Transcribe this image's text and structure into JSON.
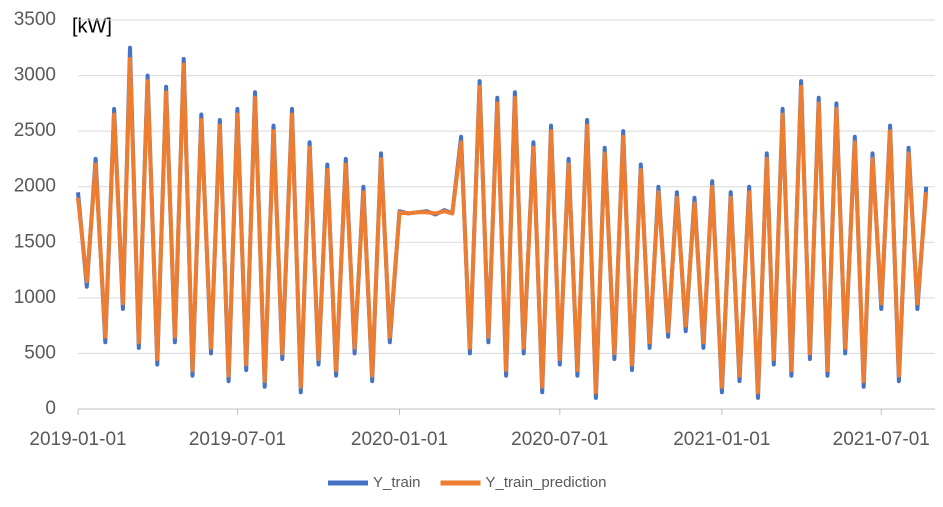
{
  "chart_data": {
    "type": "line",
    "unit_label": "[kW]",
    "x": [
      "2019-01-01",
      "2019-01-11",
      "2019-01-21",
      "2019-02-01",
      "2019-02-11",
      "2019-02-21",
      "2019-03-01",
      "2019-03-11",
      "2019-03-21",
      "2019-04-01",
      "2019-04-11",
      "2019-04-21",
      "2019-05-01",
      "2019-05-11",
      "2019-05-21",
      "2019-06-01",
      "2019-06-11",
      "2019-06-21",
      "2019-07-01",
      "2019-07-11",
      "2019-07-21",
      "2019-08-01",
      "2019-08-11",
      "2019-08-21",
      "2019-09-01",
      "2019-09-11",
      "2019-09-21",
      "2019-10-01",
      "2019-10-11",
      "2019-10-21",
      "2019-11-01",
      "2019-11-11",
      "2019-11-21",
      "2019-12-01",
      "2019-12-11",
      "2019-12-21",
      "2020-01-01",
      "2020-01-11",
      "2020-01-21",
      "2020-02-01",
      "2020-02-11",
      "2020-02-21",
      "2020-03-01",
      "2020-03-11",
      "2020-03-21",
      "2020-04-01",
      "2020-04-11",
      "2020-04-21",
      "2020-05-01",
      "2020-05-11",
      "2020-05-21",
      "2020-06-01",
      "2020-06-11",
      "2020-06-21",
      "2020-07-01",
      "2020-07-11",
      "2020-07-21",
      "2020-08-01",
      "2020-08-11",
      "2020-08-21",
      "2020-09-01",
      "2020-09-11",
      "2020-09-21",
      "2020-10-01",
      "2020-10-11",
      "2020-10-21",
      "2020-11-01",
      "2020-11-11",
      "2020-11-21",
      "2020-12-01",
      "2020-12-11",
      "2020-12-21",
      "2021-01-01",
      "2021-01-11",
      "2021-01-21",
      "2021-02-01",
      "2021-02-11",
      "2021-02-21",
      "2021-03-01",
      "2021-03-11",
      "2021-03-21",
      "2021-04-01",
      "2021-04-11",
      "2021-04-21",
      "2021-05-01",
      "2021-05-11",
      "2021-05-21",
      "2021-06-01",
      "2021-06-11",
      "2021-06-21",
      "2021-07-01",
      "2021-07-11",
      "2021-07-21",
      "2021-08-01",
      "2021-08-11",
      "2021-08-21"
    ],
    "series": [
      {
        "name": "Y_train",
        "color": "#4472c4",
        "values": [
          1950,
          1100,
          2250,
          600,
          2700,
          900,
          3250,
          550,
          3000,
          400,
          2900,
          600,
          3150,
          300,
          2650,
          500,
          2600,
          250,
          2700,
          350,
          2850,
          200,
          2550,
          450,
          2700,
          150,
          2400,
          400,
          2200,
          300,
          2250,
          500,
          2000,
          250,
          2300,
          600,
          1780,
          1760,
          1770,
          1780,
          1750,
          1790,
          1760,
          2450,
          500,
          2950,
          600,
          2800,
          300,
          2850,
          500,
          2400,
          150,
          2550,
          400,
          2250,
          300,
          2600,
          100,
          2350,
          450,
          2500,
          350,
          2200,
          550,
          2000,
          650,
          1950,
          700,
          1900,
          550,
          2050,
          150,
          1950,
          250,
          2000,
          100,
          2300,
          400,
          2700,
          300,
          2950,
          450,
          2800,
          300,
          2750,
          500,
          2450,
          200,
          2300,
          900,
          2550,
          250,
          2350,
          900,
          2000
        ]
      },
      {
        "name": "Y_train_prediction",
        "color": "#ed7d31",
        "values": [
          1900,
          1150,
          2200,
          650,
          2650,
          950,
          3150,
          600,
          2950,
          450,
          2850,
          650,
          3100,
          350,
          2600,
          550,
          2550,
          300,
          2650,
          400,
          2800,
          250,
          2500,
          500,
          2650,
          200,
          2350,
          450,
          2150,
          350,
          2200,
          550,
          1950,
          300,
          2250,
          650,
          1770,
          1760,
          1770,
          1770,
          1760,
          1780,
          1760,
          2400,
          550,
          2900,
          650,
          2750,
          350,
          2800,
          550,
          2350,
          200,
          2500,
          450,
          2200,
          350,
          2550,
          150,
          2300,
          500,
          2450,
          400,
          2150,
          600,
          1950,
          700,
          1900,
          750,
          1850,
          600,
          2000,
          200,
          1900,
          300,
          1950,
          150,
          2250,
          450,
          2650,
          350,
          2900,
          500,
          2750,
          350,
          2700,
          550,
          2400,
          250,
          2250,
          950,
          2500,
          300,
          2300,
          950,
          1950
        ]
      }
    ],
    "xlim": [
      "2019-01-01",
      "2021-08-31"
    ],
    "xticks": [
      "2019-01-01",
      "2019-07-01",
      "2020-01-01",
      "2020-07-01",
      "2021-01-01",
      "2021-07-01"
    ],
    "ylim": [
      0,
      3500
    ],
    "yticks": [
      0,
      500,
      1000,
      1500,
      2000,
      2500,
      3000,
      3500
    ],
    "grid": true,
    "legend": "bottom"
  }
}
